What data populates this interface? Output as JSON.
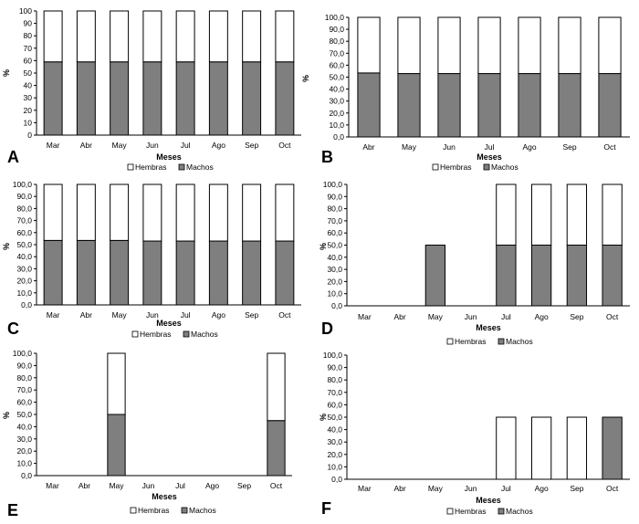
{
  "figure": {
    "description_free": true
  },
  "chart_data": [
    {
      "type": "bar",
      "stacked": true,
      "panel": "A",
      "categories": [
        "Mar",
        "Abr",
        "May",
        "Jun",
        "Jul",
        "Ago",
        "Sep",
        "Oct"
      ],
      "series": [
        {
          "name": "Machos",
          "color": "#7f7f7f",
          "values": [
            59,
            59,
            59,
            59,
            59,
            59,
            59,
            59
          ]
        },
        {
          "name": "Hembras",
          "color": "#ffffff",
          "values": [
            41,
            41,
            41,
            41,
            41,
            41,
            41,
            41
          ]
        }
      ],
      "xlabel": "Meses",
      "ylabel": "%",
      "ylim": [
        0,
        100
      ],
      "ytick_step": 10,
      "tick_format": "int",
      "legend": [
        "Hembras",
        "Machos"
      ]
    },
    {
      "type": "bar",
      "stacked": true,
      "panel": "B",
      "categories": [
        "Abr",
        "May",
        "Jun",
        "Jul",
        "Ago",
        "Sep",
        "Oct"
      ],
      "series": [
        {
          "name": "Machos",
          "color": "#7f7f7f",
          "values": [
            53.5,
            53,
            53,
            53,
            53,
            53,
            53
          ]
        },
        {
          "name": "Hembras",
          "color": "#ffffff",
          "values": [
            46.5,
            47,
            47,
            47,
            47,
            47,
            47
          ]
        }
      ],
      "xlabel": "Meses",
      "ylabel": "%",
      "ylim": [
        0,
        100
      ],
      "ytick_step": 10,
      "tick_format": "dec",
      "legend": [
        "Hembras",
        "Machos"
      ]
    },
    {
      "type": "bar",
      "stacked": true,
      "panel": "C",
      "categories": [
        "Mar",
        "Abr",
        "May",
        "Jun",
        "Jul",
        "Ago",
        "Sep",
        "Oct"
      ],
      "series": [
        {
          "name": "Machos",
          "color": "#7f7f7f",
          "values": [
            53.5,
            53.5,
            53.5,
            53,
            53,
            53,
            53,
            53
          ]
        },
        {
          "name": "Hembras",
          "color": "#ffffff",
          "values": [
            46.5,
            46.5,
            46.5,
            47,
            47,
            47,
            47,
            47
          ]
        }
      ],
      "xlabel": "Meses",
      "ylabel": "%",
      "ylim": [
        0,
        100
      ],
      "ytick_step": 10,
      "tick_format": "dec",
      "legend": [
        "Hembras",
        "Machos"
      ]
    },
    {
      "type": "bar",
      "stacked": true,
      "panel": "D",
      "categories": [
        "Mar",
        "Abr",
        "May",
        "Jun",
        "Jul",
        "Ago",
        "Sep",
        "Oct"
      ],
      "series": [
        {
          "name": "Machos",
          "color": "#7f7f7f",
          "values": [
            0,
            0,
            50,
            0,
            50,
            50,
            50,
            50
          ]
        },
        {
          "name": "Hembras",
          "color": "#ffffff",
          "values": [
            0,
            0,
            0,
            0,
            50,
            50,
            50,
            50
          ]
        }
      ],
      "xlabel": "Meses",
      "ylabel": "%",
      "ylim": [
        0,
        100
      ],
      "ytick_step": 10,
      "tick_format": "dec",
      "legend": [
        "Hembras",
        "Machos"
      ]
    },
    {
      "type": "bar",
      "stacked": true,
      "panel": "E",
      "categories": [
        "Mar",
        "Abr",
        "May",
        "Jun",
        "Jul",
        "Ago",
        "Sep",
        "Oct"
      ],
      "series": [
        {
          "name": "Machos",
          "color": "#7f7f7f",
          "values": [
            0,
            0,
            50,
            0,
            0,
            0,
            0,
            45
          ]
        },
        {
          "name": "Hembras",
          "color": "#ffffff",
          "values": [
            0,
            0,
            50,
            0,
            0,
            0,
            0,
            55
          ]
        }
      ],
      "xlabel": "Meses",
      "ylabel": "%",
      "ylim": [
        0,
        100
      ],
      "ytick_step": 10,
      "tick_format": "dec",
      "legend": [
        "Hembras",
        "Machos"
      ]
    },
    {
      "type": "bar",
      "stacked": true,
      "panel": "F",
      "categories": [
        "Mar",
        "Abr",
        "May",
        "Jun",
        "Jul",
        "Ago",
        "Sep",
        "Oct"
      ],
      "series": [
        {
          "name": "Machos",
          "color": "#7f7f7f",
          "values": [
            0,
            0,
            0,
            0,
            0,
            0,
            0,
            50
          ]
        },
        {
          "name": "Hembras",
          "color": "#ffffff",
          "values": [
            0,
            0,
            0,
            0,
            50,
            50,
            50,
            0
          ]
        }
      ],
      "xlabel": "Meses",
      "ylabel": "%",
      "ylim": [
        0,
        100
      ],
      "ytick_step": 10,
      "tick_format": "dec",
      "legend": [
        "Hembras",
        "Machos"
      ]
    }
  ]
}
